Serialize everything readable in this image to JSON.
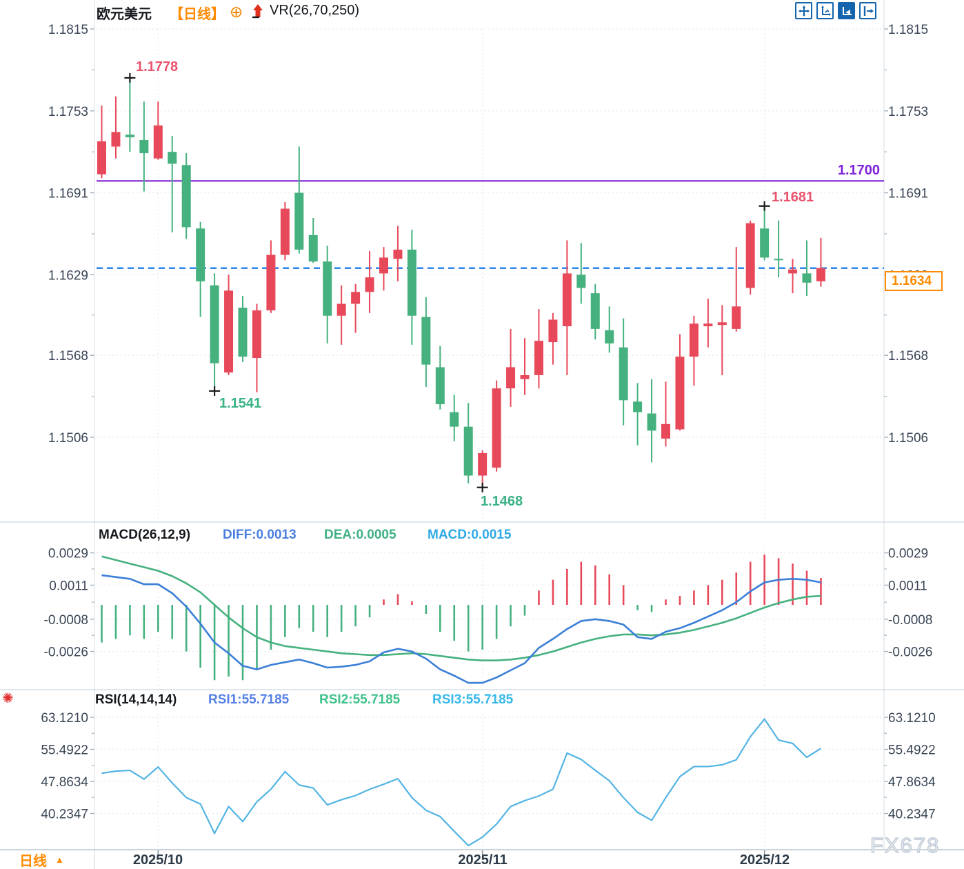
{
  "header": {
    "symbol": "欧元美元",
    "timeframe_tag": "【日线】",
    "indicator": "VR(26,70,250)"
  },
  "icons": {
    "add_indicator": "⊕",
    "settings_glyph": "✺",
    "dropdown_arrow": "▲"
  },
  "toolbar": {
    "buttons": [
      "pan-tool",
      "axis-scale",
      "drawing-tool",
      "collapse-panel"
    ],
    "accent_color": "#1465ae",
    "active_button": "drawing-tool"
  },
  "macd_panel": {
    "title": "MACD(26,12,9)",
    "labels": [
      {
        "text": "DIFF:0.0013",
        "color": "#4a7fe0"
      },
      {
        "text": "DEA:0.0005",
        "color": "#3fb183"
      },
      {
        "text": "MACD:0.0015",
        "color": "#2fa9e8"
      }
    ]
  },
  "rsi_panel": {
    "title": "RSI(14,14,14)",
    "labels": [
      {
        "text": "RSI1:55.7185",
        "color": "#5580e8"
      },
      {
        "text": "RSI2:55.7185",
        "color": "#3fc18a"
      },
      {
        "text": "RSI3:55.7185",
        "color": "#35b8e8"
      }
    ]
  },
  "footer": {
    "period_label": "日线"
  },
  "watermark": "FX678",
  "chart_data": {
    "type": "candlestick",
    "title": "EUR/USD (欧元美元) daily chart with MACD and RSI panels",
    "up_color": "#e8495a",
    "down_color": "#45b17e",
    "grid": "dotted",
    "x_labels": [
      {
        "text": "2025/10",
        "index": 4
      },
      {
        "text": "2025/11",
        "index": 27
      },
      {
        "text": "2025/12",
        "index": 47
      }
    ],
    "price": {
      "y_tick_labels": [
        "1.1815",
        "1.1753",
        "1.1691",
        "1.1629",
        "1.1568",
        "1.1506"
      ],
      "ylim": [
        1.1455,
        1.1815
      ],
      "support_line": 1.17,
      "support_label": "1.1700",
      "support_color": "#7e22d8",
      "last_price": 1.1634,
      "last_price_label": "1.1634",
      "last_price_line_color": "#1677ec",
      "annotations": [
        {
          "text": "1.1778",
          "price": 1.1778,
          "candle": 2,
          "type": "high"
        },
        {
          "text": "1.1541",
          "price": 1.1541,
          "candle": 8,
          "type": "low"
        },
        {
          "text": "1.1468",
          "price": 1.1468,
          "candle": 27,
          "type": "low"
        },
        {
          "text": "1.1681",
          "price": 1.1681,
          "candle": 47,
          "type": "high"
        }
      ],
      "candles_format": [
        "open",
        "high",
        "low",
        "close"
      ],
      "candles": [
        [
          1.1705,
          1.1757,
          1.1702,
          1.173
        ],
        [
          1.1726,
          1.1764,
          1.1717,
          1.1737
        ],
        [
          1.1735,
          1.1778,
          1.1722,
          1.1733
        ],
        [
          1.1731,
          1.176,
          1.1692,
          1.1721
        ],
        [
          1.1717,
          1.176,
          1.1716,
          1.1742
        ],
        [
          1.1722,
          1.1734,
          1.1661,
          1.1713
        ],
        [
          1.1712,
          1.1721,
          1.1656,
          1.1665
        ],
        [
          1.1664,
          1.1669,
          1.1597,
          1.1624
        ],
        [
          1.1621,
          1.163,
          1.1541,
          1.1562
        ],
        [
          1.1555,
          1.1629,
          1.1553,
          1.1617
        ],
        [
          1.1604,
          1.1613,
          1.1563,
          1.1567
        ],
        [
          1.1566,
          1.1607,
          1.154,
          1.1602
        ],
        [
          1.1602,
          1.1655,
          1.16,
          1.1644
        ],
        [
          1.1644,
          1.1684,
          1.164,
          1.1679
        ],
        [
          1.1691,
          1.1726,
          1.1645,
          1.1648
        ],
        [
          1.1659,
          1.1672,
          1.1638,
          1.1639
        ],
        [
          1.1639,
          1.1651,
          1.1577,
          1.1598
        ],
        [
          1.1598,
          1.1621,
          1.1576,
          1.1607
        ],
        [
          1.1607,
          1.1622,
          1.1585,
          1.1616
        ],
        [
          1.1616,
          1.1647,
          1.16,
          1.1627
        ],
        [
          1.163,
          1.165,
          1.1617,
          1.1642
        ],
        [
          1.1641,
          1.1666,
          1.1624,
          1.1648
        ],
        [
          1.1648,
          1.1663,
          1.1576,
          1.1598
        ],
        [
          1.1597,
          1.1612,
          1.1544,
          1.1561
        ],
        [
          1.1559,
          1.1575,
          1.1527,
          1.1531
        ],
        [
          1.1525,
          1.1538,
          1.1503,
          1.1514
        ],
        [
          1.1514,
          1.1532,
          1.1471,
          1.1477
        ],
        [
          1.1477,
          1.1496,
          1.1468,
          1.1494
        ],
        [
          1.1483,
          1.1549,
          1.148,
          1.1543
        ],
        [
          1.1543,
          1.1588,
          1.1529,
          1.1559
        ],
        [
          1.155,
          1.1581,
          1.1538,
          1.1553
        ],
        [
          1.1553,
          1.1603,
          1.1543,
          1.1579
        ],
        [
          1.1578,
          1.16,
          1.1561,
          1.1595
        ],
        [
          1.159,
          1.1655,
          1.1553,
          1.163
        ],
        [
          1.1629,
          1.1653,
          1.1607,
          1.1619
        ],
        [
          1.1615,
          1.1622,
          1.158,
          1.1588
        ],
        [
          1.1587,
          1.1605,
          1.157,
          1.1577
        ],
        [
          1.1574,
          1.1596,
          1.1515,
          1.1534
        ],
        [
          1.1533,
          1.1547,
          1.15,
          1.1525
        ],
        [
          1.1524,
          1.155,
          1.1487,
          1.1511
        ],
        [
          1.1505,
          1.1548,
          1.1499,
          1.1516
        ],
        [
          1.1512,
          1.1584,
          1.1511,
          1.1567
        ],
        [
          1.1567,
          1.1598,
          1.1545,
          1.1592
        ],
        [
          1.159,
          1.1611,
          1.1574,
          1.1592
        ],
        [
          1.1591,
          1.1606,
          1.1553,
          1.1593
        ],
        [
          1.1588,
          1.165,
          1.1586,
          1.1605
        ],
        [
          1.1619,
          1.167,
          1.1614,
          1.1668
        ],
        [
          1.1664,
          1.1681,
          1.164,
          1.1642
        ],
        [
          1.1641,
          1.167,
          1.1627,
          1.164
        ],
        [
          1.163,
          1.1641,
          1.1615,
          1.1633
        ],
        [
          1.163,
          1.1655,
          1.1613,
          1.1623
        ],
        [
          1.1624,
          1.1657,
          1.162,
          1.1634
        ]
      ]
    },
    "macd": {
      "params": "26,12,9",
      "y_tick_labels": [
        "0.0029",
        "0.0011",
        "-0.0008",
        "-0.0026"
      ],
      "diff_color": "#3b7fd6",
      "dea_color": "#45b17e",
      "diff": [
        0.00165,
        0.00155,
        0.00145,
        0.00115,
        0.00115,
        0.00065,
        -0.0001,
        -0.00105,
        -0.0021,
        -0.0027,
        -0.0034,
        -0.0036,
        -0.00335,
        -0.0032,
        -0.00305,
        -0.00325,
        -0.0035,
        -0.00345,
        -0.00335,
        -0.00315,
        -0.00265,
        -0.00245,
        -0.0026,
        -0.003,
        -0.0036,
        -0.00395,
        -0.00435,
        -0.00435,
        -0.00405,
        -0.00365,
        -0.00325,
        -0.0024,
        -0.0019,
        -0.00135,
        -0.0009,
        -0.0008,
        -0.0009,
        -0.0011,
        -0.0018,
        -0.0019,
        -0.0015,
        -0.0013,
        -0.001,
        -0.00065,
        -0.0003,
        0.00015,
        0.00075,
        0.00125,
        0.0014,
        0.00145,
        0.0014,
        0.00125
      ],
      "dea": [
        0.0027,
        0.0025,
        0.0023,
        0.0021,
        0.0019,
        0.0016,
        0.0012,
        0.0007,
        0.0,
        -0.0007,
        -0.0013,
        -0.0018,
        -0.0021,
        -0.0023,
        -0.0024,
        -0.0025,
        -0.0026,
        -0.0027,
        -0.00275,
        -0.0028,
        -0.0028,
        -0.00275,
        -0.0027,
        -0.00275,
        -0.00285,
        -0.00295,
        -0.00305,
        -0.0031,
        -0.0031,
        -0.00305,
        -0.00295,
        -0.0028,
        -0.0026,
        -0.00235,
        -0.0021,
        -0.0019,
        -0.00175,
        -0.00165,
        -0.00165,
        -0.0017,
        -0.00165,
        -0.00155,
        -0.0014,
        -0.0012,
        -0.001,
        -0.00075,
        -0.00045,
        -0.00015,
        0.0001,
        0.0003,
        0.00045,
        0.0005
      ],
      "hist": [
        -0.0021,
        -0.0019,
        -0.0017,
        -0.0019,
        -0.0015,
        -0.0019,
        -0.0026,
        -0.0035,
        -0.0042,
        -0.004,
        -0.0042,
        -0.0036,
        -0.0025,
        -0.0018,
        -0.0013,
        -0.0015,
        -0.0018,
        -0.0015,
        -0.0012,
        -0.0007,
        0.0003,
        0.0006,
        0.0002,
        -0.0005,
        -0.0015,
        -0.002,
        -0.0026,
        -0.0025,
        -0.0019,
        -0.0012,
        -0.0006,
        0.0008,
        0.0014,
        0.002,
        0.0024,
        0.0022,
        0.0017,
        0.0011,
        -0.0003,
        -0.0004,
        0.0003,
        0.0005,
        0.0008,
        0.0011,
        0.0014,
        0.0018,
        0.0024,
        0.0028,
        0.0026,
        0.0023,
        0.0019,
        0.0015
      ]
    },
    "rsi": {
      "params": "14,14,14",
      "y_tick_labels": [
        "63.1210",
        "55.4922",
        "47.8634",
        "40.2347"
      ],
      "line_color": "#52b4e4",
      "values": [
        49.8,
        50.3,
        50.5,
        48.4,
        51.3,
        47.5,
        44.0,
        42.5,
        35.5,
        41.9,
        38.3,
        43.0,
        46.0,
        50.2,
        47.0,
        46.3,
        42.3,
        43.5,
        44.5,
        46.0,
        47.2,
        48.5,
        44.0,
        41.0,
        39.5,
        36.0,
        32.6,
        34.6,
        37.7,
        41.9,
        43.3,
        44.4,
        46.0,
        54.6,
        53.1,
        50.5,
        48.0,
        44.0,
        40.5,
        38.6,
        44.0,
        49.0,
        51.4,
        51.4,
        51.8,
        53.0,
        58.5,
        62.7,
        57.7,
        56.9,
        53.6,
        55.7
      ]
    }
  }
}
